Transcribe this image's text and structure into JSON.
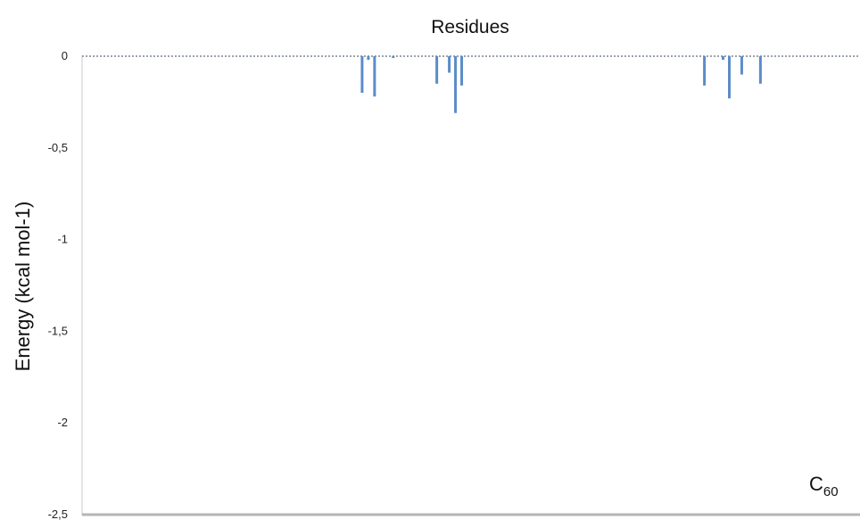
{
  "chart_data": {
    "type": "bar",
    "title": "Residues",
    "xlabel": "",
    "ylabel": "Energy (kcal mol-1)",
    "ylim": [
      -2.5,
      0
    ],
    "yticks": [
      0,
      -0.5,
      -1,
      -1.5,
      -2,
      -2.5
    ],
    "ytick_labels": [
      "0",
      "-0,5",
      "-1",
      "-1,5",
      "-2",
      "-2,5"
    ],
    "x_range": [
      0,
      125
    ],
    "grid": false,
    "legend": "none",
    "bar_color": "#5B8CC9",
    "annotation": {
      "main": "C",
      "sub": "60"
    },
    "series": [
      {
        "x": [
          45,
          46,
          47,
          50,
          57,
          59,
          60,
          61,
          100,
          103,
          104,
          106,
          109
        ],
        "values": [
          -0.2,
          -0.02,
          -0.22,
          -0.01,
          -0.15,
          -0.09,
          -0.31,
          -0.16,
          -0.16,
          -0.02,
          -0.23,
          -0.1,
          -0.15
        ]
      }
    ]
  }
}
